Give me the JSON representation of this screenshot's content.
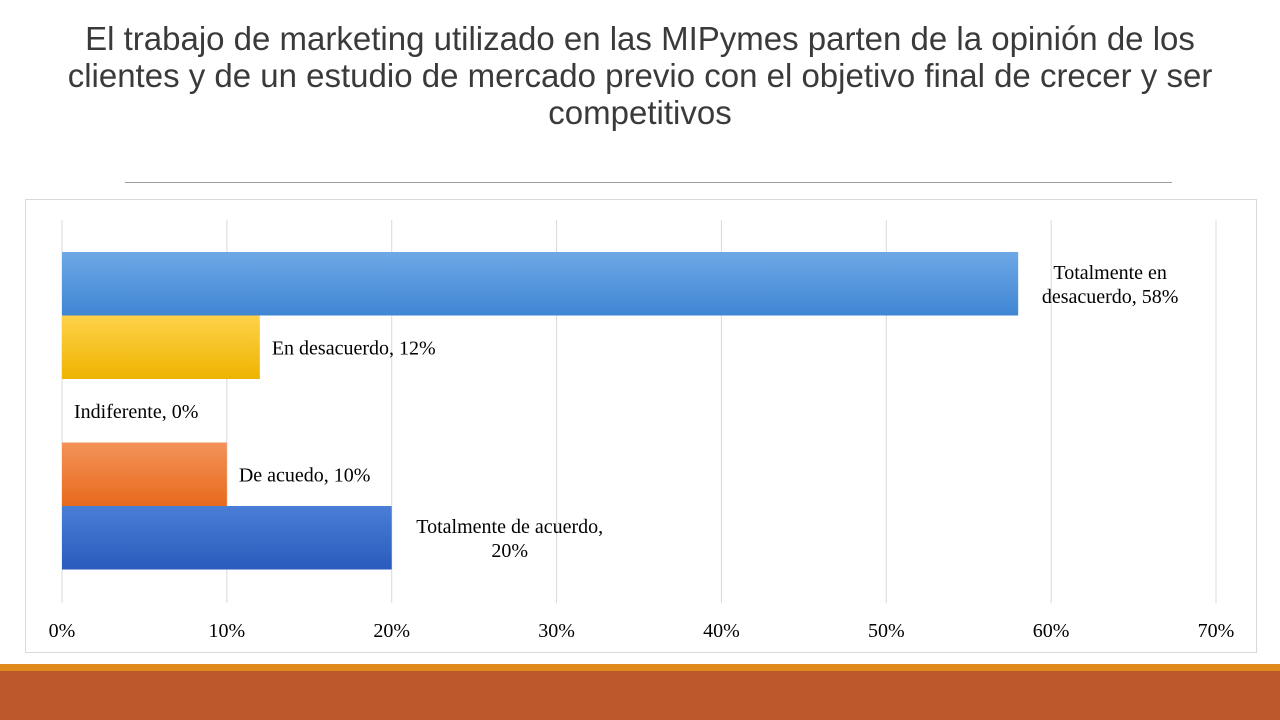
{
  "slide": {
    "title": "El trabajo de marketing utilizado en las MIPymes parten de la opinión de los clientes y de un estudio de mercado previo con el objetivo final de crecer y ser competitivos"
  },
  "chart_data": {
    "type": "bar",
    "orientation": "horizontal",
    "categories": [
      "Totalmente en desacuerdo",
      "En desacuerdo",
      "Indiferente",
      "De acuedo",
      "Totalmente de acuerdo"
    ],
    "values": [
      58,
      12,
      0,
      10,
      20
    ],
    "value_unit": "%",
    "data_labels": [
      [
        "Totalmente en",
        "desacuerdo, 58%"
      ],
      [
        "En desacuerdo, 12%"
      ],
      [
        "Indiferente, 0%"
      ],
      [
        "De acuedo, 10%"
      ],
      [
        "Totalmente de acuerdo,",
        "20%"
      ]
    ],
    "colors": [
      "#4a90d9",
      "#fbbf12",
      "#ffffff",
      "#ee7a30",
      "#3465c4"
    ],
    "xlim": [
      0,
      70
    ],
    "xticks": [
      "0%",
      "10%",
      "20%",
      "30%",
      "40%",
      "50%",
      "60%",
      "70%"
    ],
    "grid": true,
    "legend": "none",
    "title": "",
    "xlabel": "",
    "ylabel": ""
  },
  "theme": {
    "footer_accent": "#e0891c",
    "footer_band": "#bd582c",
    "title_color": "#3a3a3a"
  }
}
